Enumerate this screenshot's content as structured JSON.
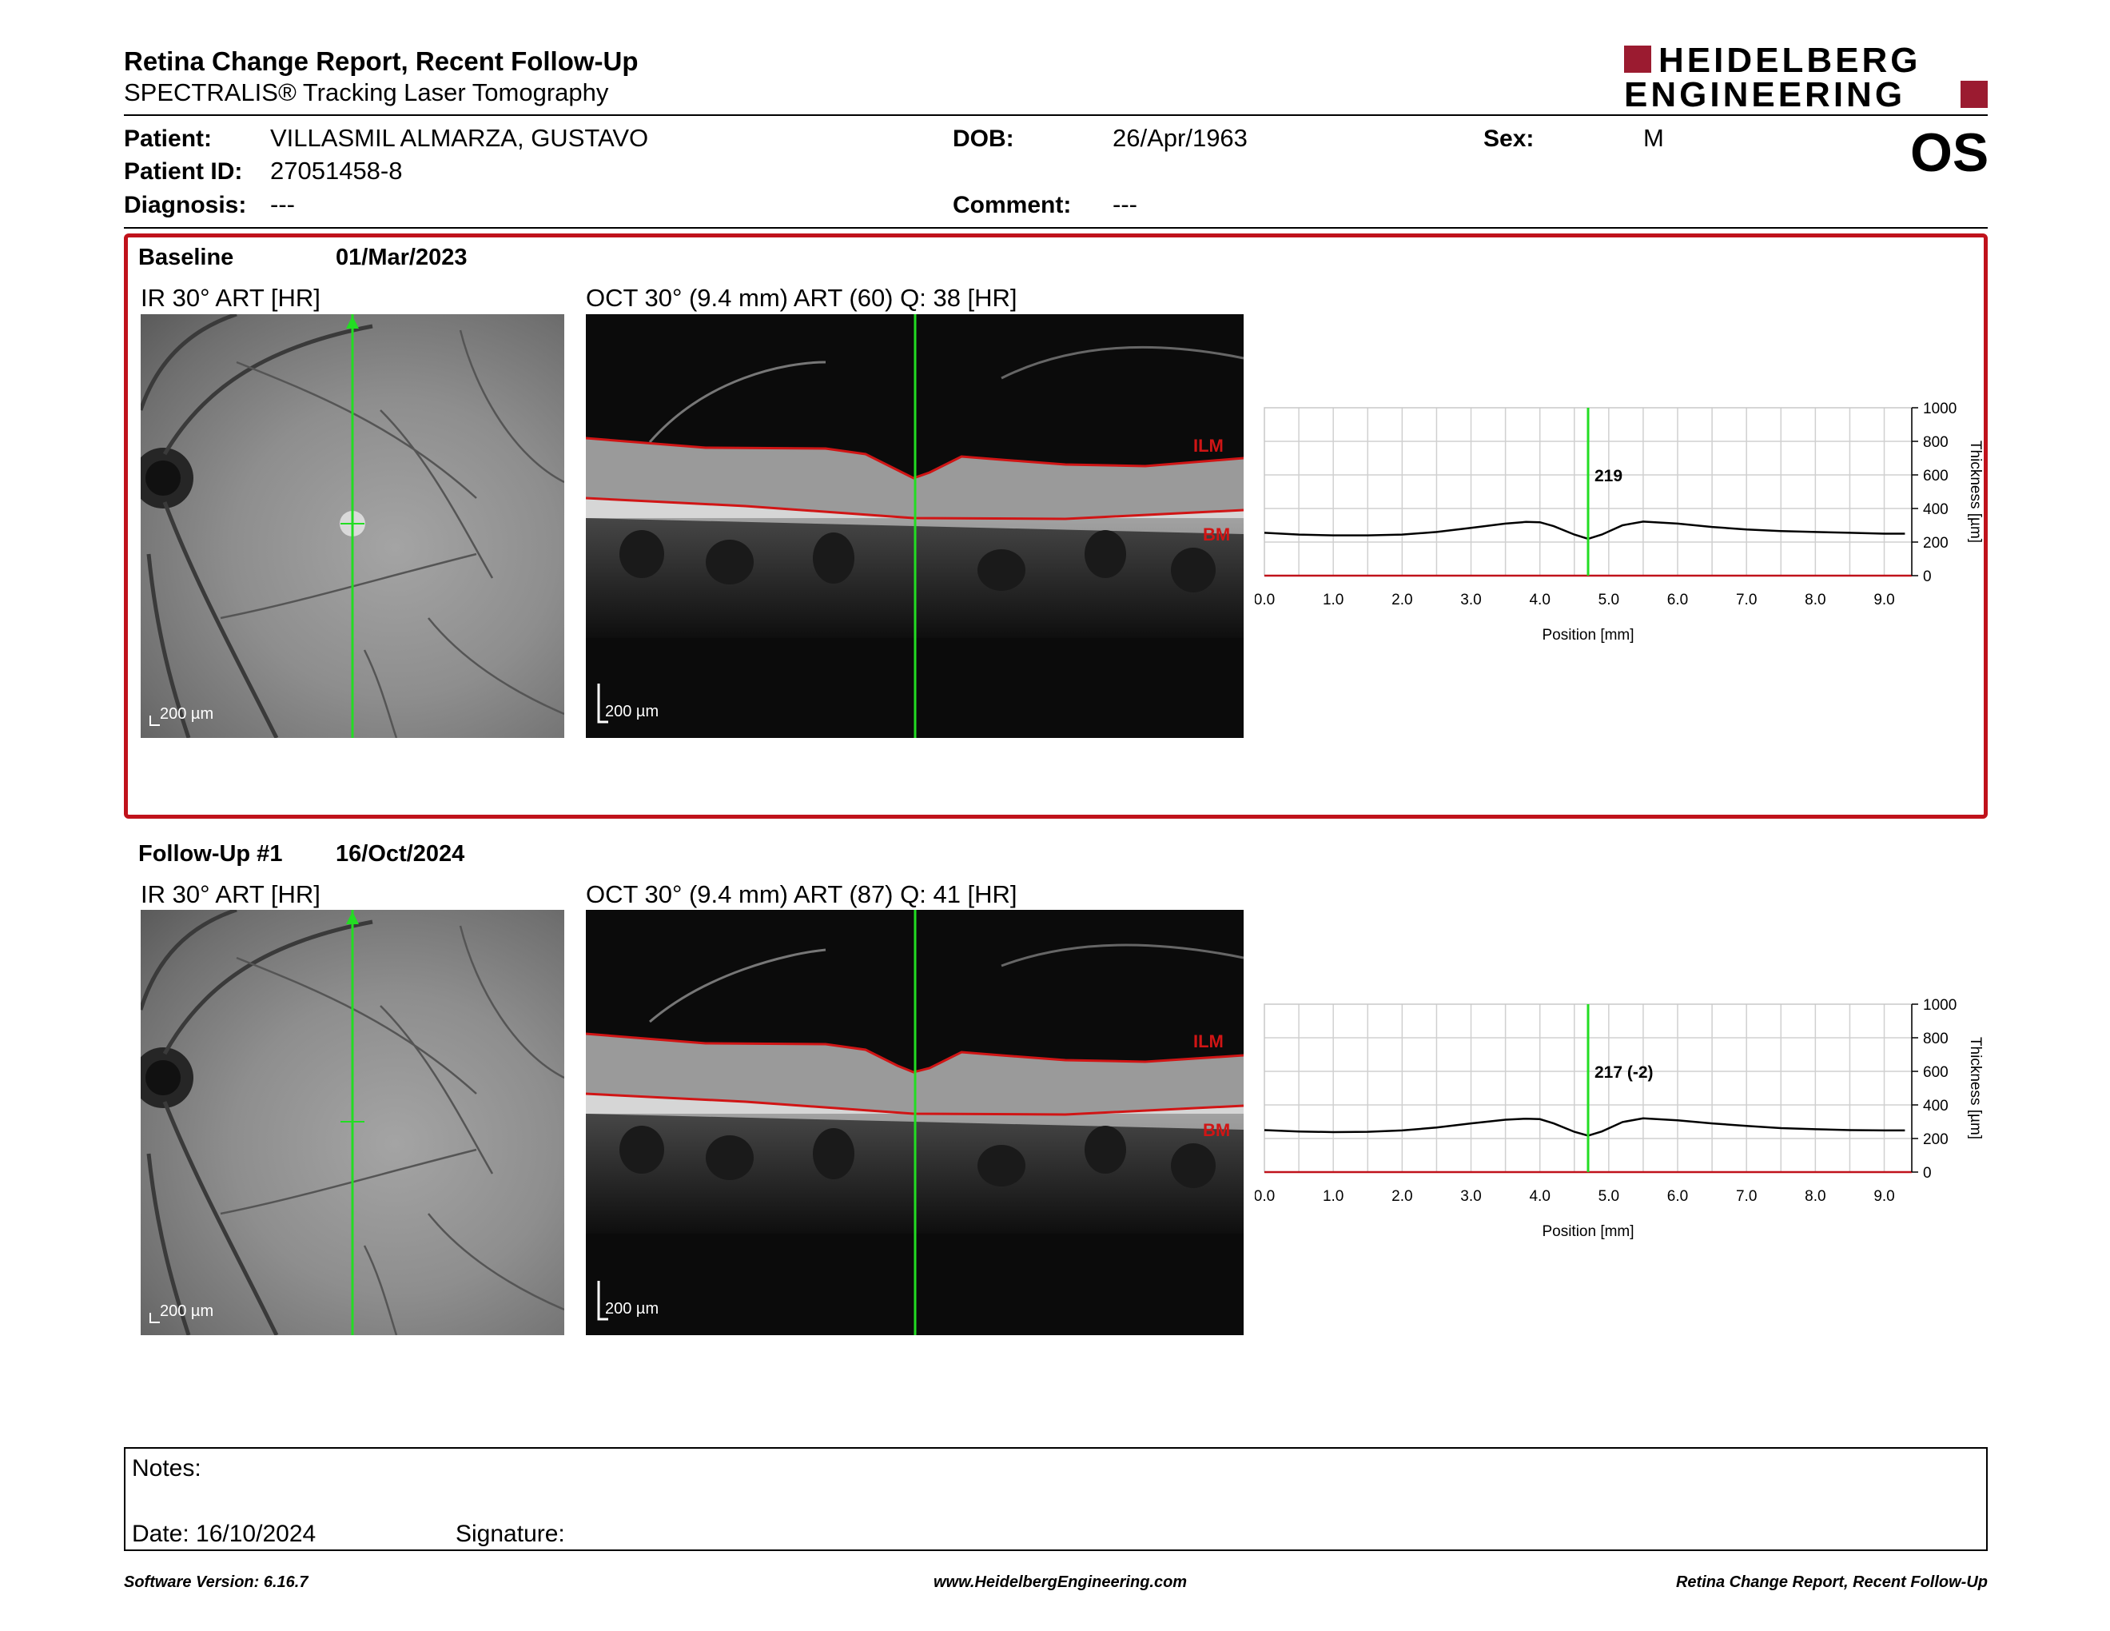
{
  "header": {
    "title": "Retina Change Report, Recent Follow-Up",
    "subtitle": "SPECTRALIS® Tracking Laser Tomography",
    "logo_line1": "HEIDELBERG",
    "logo_line2": "ENGINEERING",
    "eye": "OS"
  },
  "patient": {
    "name_label": "Patient:",
    "name": "VILLASMIL ALMARZA, GUSTAVO",
    "id_label": "Patient ID:",
    "id": "27051458-8",
    "diagnosis_label": "Diagnosis:",
    "diagnosis": "---",
    "dob_label": "DOB:",
    "dob": "26/Apr/1963",
    "comment_label": "Comment:",
    "comment": "---",
    "sex_label": "Sex:",
    "sex": "M"
  },
  "baseline": {
    "label": "Baseline",
    "date": "01/Mar/2023",
    "ir_caption": "IR 30° ART [HR]",
    "oct_caption": "OCT 30° (9.4 mm) ART (60) Q: 38 [HR]",
    "scale_ir": "200 µm",
    "scale_oct": "200 µm",
    "ilm": "ILM",
    "bm": "BM",
    "marker_value": "219"
  },
  "followup": {
    "label": "Follow-Up #1",
    "date": "16/Oct/2024",
    "ir_caption": "IR 30° ART [HR]",
    "oct_caption": "OCT 30° (9.4 mm) ART (87) Q: 41 [HR]",
    "scale_ir": "200 µm",
    "scale_oct": "200 µm",
    "ilm": "ILM",
    "bm": "BM",
    "marker_value": "217 (-2)"
  },
  "chart_data": [
    {
      "type": "line",
      "xlabel": "Position [mm]",
      "ylabel": "Thickness [µm]",
      "xlim": [
        0,
        9.4
      ],
      "ylim": [
        0,
        1000
      ],
      "x_ticks": [
        "0.0",
        "1.0",
        "2.0",
        "3.0",
        "4.0",
        "5.0",
        "6.0",
        "7.0",
        "8.0",
        "9.0"
      ],
      "y_ticks": [
        "0",
        "200",
        "400",
        "600",
        "800",
        "1000"
      ],
      "grid": true,
      "marker_x": 4.7,
      "marker_label": "219",
      "series": [
        {
          "x": [
            0,
            0.5,
            1.0,
            1.5,
            2.0,
            2.5,
            3.0,
            3.5,
            3.8,
            4.0,
            4.2,
            4.5,
            4.7,
            4.9,
            5.2,
            5.5,
            6.0,
            6.5,
            7.0,
            7.5,
            8.0,
            8.5,
            9.0,
            9.3
          ],
          "values": [
            255,
            245,
            240,
            240,
            245,
            260,
            285,
            310,
            320,
            318,
            295,
            245,
            219,
            245,
            300,
            322,
            310,
            290,
            275,
            265,
            260,
            255,
            250,
            250
          ]
        }
      ]
    },
    {
      "type": "line",
      "xlabel": "Position [mm]",
      "ylabel": "Thickness [µm]",
      "xlim": [
        0,
        9.4
      ],
      "ylim": [
        0,
        1000
      ],
      "x_ticks": [
        "0.0",
        "1.0",
        "2.0",
        "3.0",
        "4.0",
        "5.0",
        "6.0",
        "7.0",
        "8.0",
        "9.0"
      ],
      "y_ticks": [
        "0",
        "200",
        "400",
        "600",
        "800",
        "1000"
      ],
      "grid": true,
      "marker_x": 4.7,
      "marker_label": "217 (-2)",
      "series": [
        {
          "x": [
            0,
            0.5,
            1.0,
            1.5,
            2.0,
            2.5,
            3.0,
            3.5,
            3.8,
            4.0,
            4.2,
            4.5,
            4.7,
            4.9,
            5.2,
            5.5,
            6.0,
            6.5,
            7.0,
            7.5,
            8.0,
            8.5,
            9.0,
            9.3
          ],
          "values": [
            250,
            242,
            238,
            240,
            248,
            265,
            290,
            312,
            318,
            315,
            290,
            240,
            217,
            242,
            298,
            320,
            308,
            290,
            275,
            262,
            255,
            250,
            248,
            248
          ]
        }
      ]
    }
  ],
  "notes": {
    "notes_label": "Notes:",
    "date_label": "Date: 16/10/2024",
    "signature_label": "Signature:"
  },
  "footer": {
    "left": "Software Version: 6.16.7",
    "center": "www.HeidelbergEngineering.com",
    "right": "Retina Change Report, Recent Follow-Up"
  },
  "colors": {
    "accent": "#9b1b30",
    "section_border": "#c0121b",
    "marker": "#22dd22",
    "layer_line": "#d01515"
  }
}
